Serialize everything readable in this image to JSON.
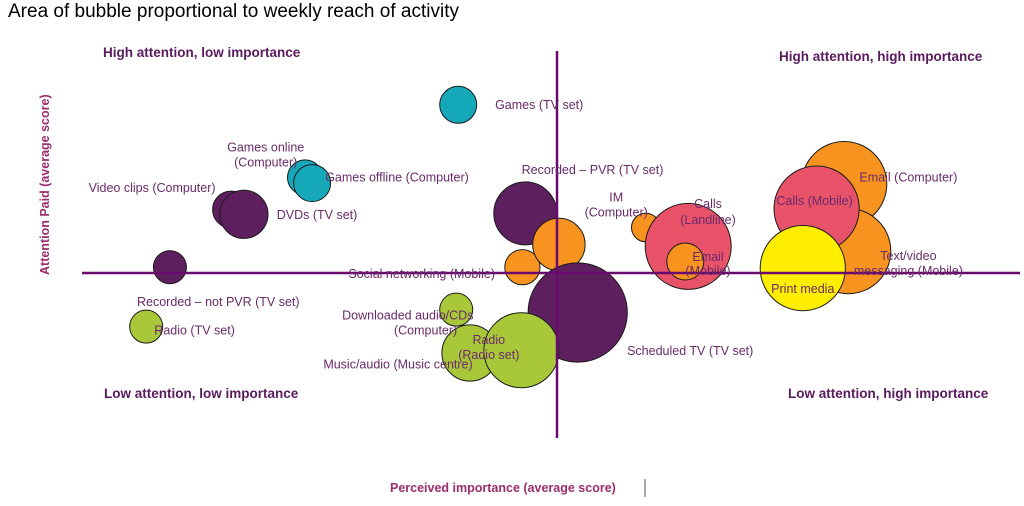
{
  "chart_data": {
    "type": "scatter",
    "subtype": "bubble",
    "title": "Area of bubble proportional to weekly reach of activity",
    "xlabel": "Perceived importance (average score)",
    "ylabel": "Attention Paid (average score)",
    "xlim": [
      -4.8,
      4.7
    ],
    "ylim": [
      -1.9,
      2.2
    ],
    "axes_cross_at": [
      0,
      0
    ],
    "grid": false,
    "legend": "none",
    "quadrant_labels": {
      "top_left": "High attention, low importance",
      "top_right": "High attention, high importance",
      "bottom_left": "Low attention, low importance",
      "bottom_right": "Low attention, high importance"
    },
    "colors": {
      "purple": "#5e1f5e",
      "teal": "#14a8b8",
      "orange": "#f7931e",
      "pink": "#e8536a",
      "green": "#a8c83a",
      "yellow": "#ffee00"
    },
    "points": [
      {
        "label": "Games (TV set)",
        "x": -0.99,
        "y": 1.63,
        "reach": 1.0,
        "color": "teal"
      },
      {
        "label": "Games online (Computer)",
        "x": -2.54,
        "y": 0.86,
        "reach": 0.9,
        "color": "teal"
      },
      {
        "label": "Games offline (Computer)",
        "x": -2.47,
        "y": 0.8,
        "reach": 1.0,
        "color": "teal"
      },
      {
        "label": "Video clips (Computer)",
        "x": -3.29,
        "y": 0.52,
        "reach": 1.0,
        "color": "purple"
      },
      {
        "label": "DVDs (TV set)",
        "x": -3.16,
        "y": 0.47,
        "reach": 1.7,
        "color": "purple"
      },
      {
        "label": "Recorded – not PVR (TV set)",
        "x": -3.91,
        "y": -0.09,
        "reach": 0.8,
        "color": "purple"
      },
      {
        "label": "Radio (TV set)",
        "x": -4.15,
        "y": -0.72,
        "reach": 0.8,
        "color": "green"
      },
      {
        "label": "Recorded – PVR (TV set)",
        "x": -0.31,
        "y": 0.48,
        "reach": 2.9,
        "color": "purple"
      },
      {
        "label": "Social networking (Mobile)",
        "x": -0.34,
        "y": -0.09,
        "reach": 0.9,
        "color": "orange"
      },
      {
        "label": "IM (Computer)",
        "x": 0.03,
        "y": 0.15,
        "reach": 2.0,
        "color": "orange"
      },
      {
        "label": "Scheduled TV (TV set)",
        "x": 0.22,
        "y": -0.57,
        "reach": 7.2,
        "color": "purple"
      },
      {
        "label": "Downloaded audio/CDs (Computer)",
        "x": -1.01,
        "y": -0.54,
        "reach": 0.8,
        "color": "green"
      },
      {
        "label": "Music/audio (Music centre)",
        "x": -0.87,
        "y": -1.0,
        "reach": 2.3,
        "color": "green"
      },
      {
        "label": "Radio (Radio set)",
        "x": -0.35,
        "y": -0.97,
        "reach": 4.1,
        "color": "green"
      },
      {
        "label": "IM (Computer) – small",
        "x": 0.91,
        "y": 0.33,
        "reach": 0.6,
        "color": "orange"
      },
      {
        "label": "Calls (Landline)",
        "x": 1.34,
        "y": 0.13,
        "reach": 5.4,
        "color": "pink"
      },
      {
        "label": "Email (Mobile)",
        "x": 1.31,
        "y": -0.03,
        "reach": 1.0,
        "color": "orange"
      },
      {
        "label": "Email (Computer)",
        "x": 2.92,
        "y": 0.79,
        "reach": 5.3,
        "color": "orange"
      },
      {
        "label": "Text/video messaging (Mobile)",
        "x": 2.96,
        "y": 0.08,
        "reach": 5.3,
        "color": "orange"
      },
      {
        "label": "Calls (Mobile)",
        "x": 2.64,
        "y": 0.53,
        "reach": 5.3,
        "color": "pink"
      },
      {
        "label": "Print media",
        "x": 2.5,
        "y": -0.1,
        "reach": 5.3,
        "color": "yellow"
      }
    ],
    "labels": [
      {
        "text": "Games (TV set)",
        "x": -0.17,
        "y": 1.63
      },
      {
        "text": "Games online",
        "x": -2.94,
        "y": 1.18
      },
      {
        "text": "(Computer)",
        "x": -2.94,
        "y": 1.02
      },
      {
        "text": "Games offline (Computer)",
        "x": -1.61,
        "y": 0.86
      },
      {
        "text": "Video clips (Computer)",
        "x": -4.09,
        "y": 0.75
      },
      {
        "text": "DVDs (TV set)",
        "x": -2.42,
        "y": 0.46
      },
      {
        "text": "Recorded – PVR (TV set)",
        "x": 0.37,
        "y": 0.94
      },
      {
        "text": "IM",
        "x": 0.61,
        "y": 0.65
      },
      {
        "text": "(Computer)",
        "x": 0.61,
        "y": 0.49
      },
      {
        "text": "Calls",
        "x": 1.54,
        "y": 0.58
      },
      {
        "text": "(Landline)",
        "x": 1.54,
        "y": 0.41
      },
      {
        "text": "Email",
        "x": 1.54,
        "y": 0.02
      },
      {
        "text": "(Mobile)",
        "x": 1.54,
        "y": -0.13
      },
      {
        "text": "Email (Computer)",
        "x": 3.57,
        "y": 0.86
      },
      {
        "text": "Calls (Mobile)",
        "x": 2.62,
        "y": 0.61
      },
      {
        "text": "Text/video",
        "x": 3.57,
        "y": 0.03
      },
      {
        "text": "messaging (Mobile)",
        "x": 3.57,
        "y": -0.13
      },
      {
        "text": "Print media",
        "x": 2.5,
        "y": -0.32
      },
      {
        "text": "Social networking (Mobile)",
        "x": -1.36,
        "y": -0.16
      },
      {
        "text": "Recorded – not PVR (TV set)",
        "x": -3.42,
        "y": -0.46
      },
      {
        "text": "Radio (TV set)",
        "x": -3.66,
        "y": -0.76
      },
      {
        "text": "Downloaded audio/CDs",
        "x": -1.5,
        "y": -0.6
      },
      {
        "text": "(Computer)",
        "x": -1.32,
        "y": -0.76
      },
      {
        "text": "Radio",
        "x": -0.68,
        "y": -0.86
      },
      {
        "text": "(Radio set)",
        "x": -0.68,
        "y": -1.02
      },
      {
        "text": "Music/audio (Music centre)",
        "x": -1.6,
        "y": -1.12
      },
      {
        "text": "Scheduled TV (TV set)",
        "x": 1.36,
        "y": -0.98
      }
    ]
  }
}
